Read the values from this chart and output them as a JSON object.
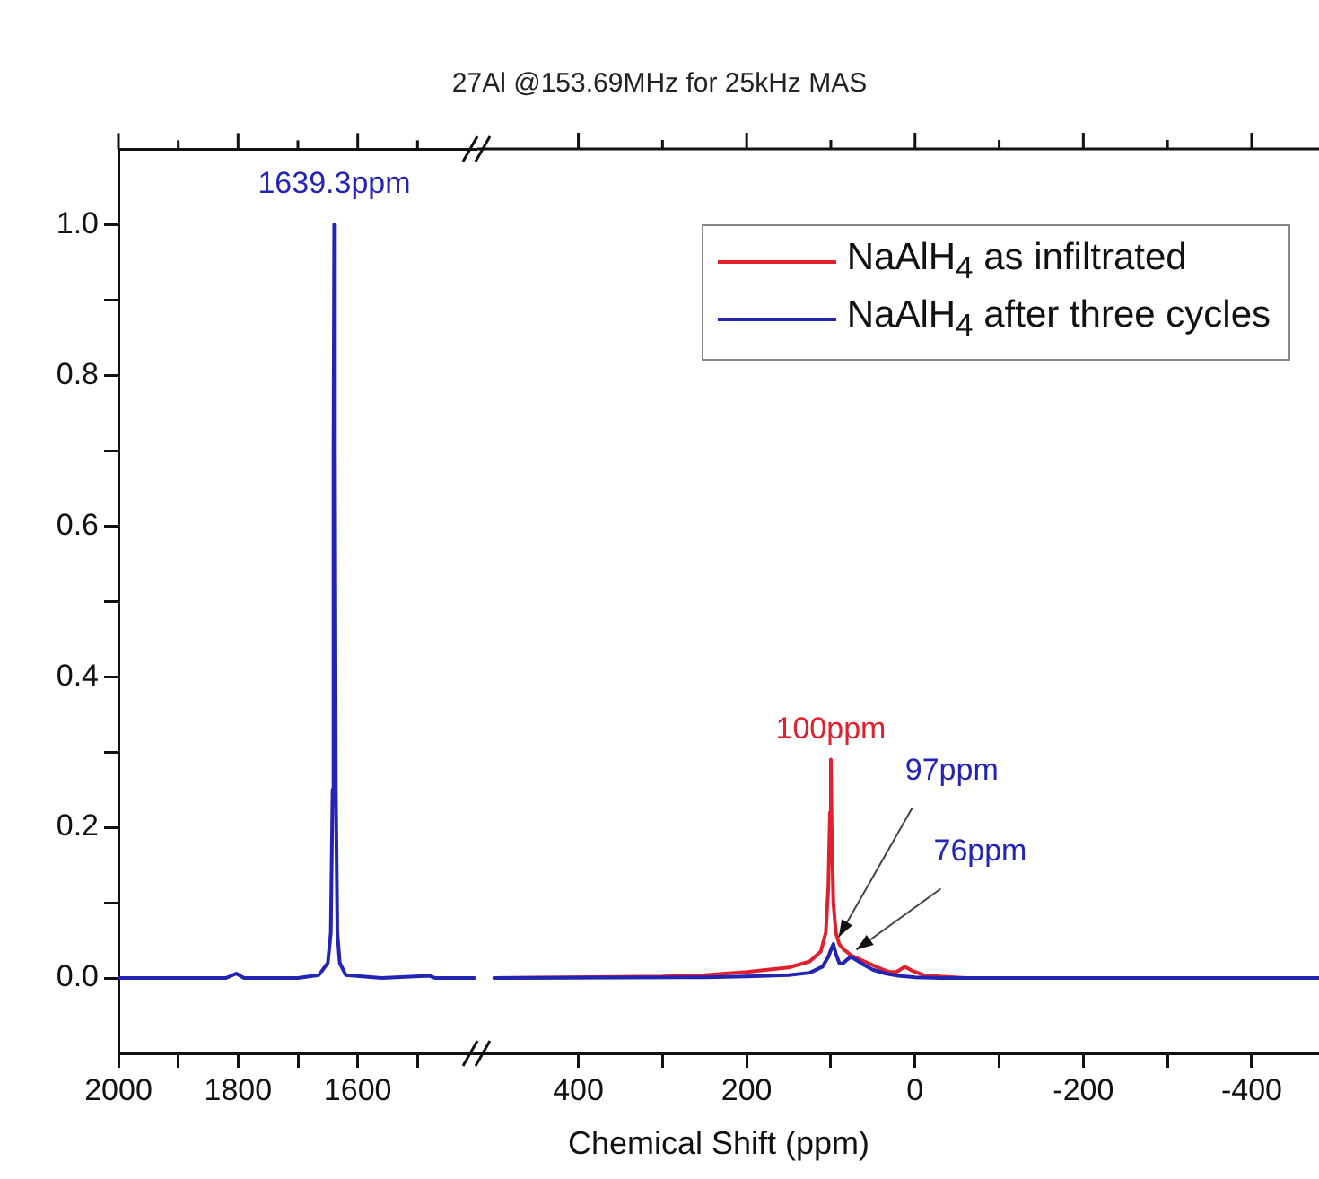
{
  "chart_data": [
    {
      "type": "line",
      "xlim": [
        2000,
        1400
      ],
      "xticks": [
        2000,
        {
          "value": 1900,
          "label": null
        },
        1800,
        {
          "value": 1700,
          "label": null
        },
        1600,
        {
          "value": 1500,
          "label": null
        }
      ],
      "ylim": [
        -0.1,
        1.1
      ],
      "yticks": [
        {
          "value": 0,
          "label": "0.0"
        },
        {
          "value": 0.1,
          "label": null
        },
        0.2,
        {
          "value": 0.3,
          "label": null
        },
        0.4,
        {
          "value": 0.5,
          "label": null
        },
        0.6,
        {
          "value": 0.7,
          "label": null
        },
        0.8,
        {
          "value": 0.9,
          "label": null
        },
        {
          "value": 1,
          "label": "1.0"
        }
      ],
      "grid": false,
      "legend": false,
      "marker": "none",
      "line_style": "solid",
      "series": [
        {
          "color": "#2424b4",
          "x": [
            2000,
            1820,
            1803,
            1790,
            1700,
            1665,
            1650,
            1645,
            1642,
            1640.5,
            1639.3,
            1638,
            1636.5,
            1634,
            1630,
            1620,
            1560,
            1480,
            1470,
            1405
          ],
          "values": [
            0,
            0,
            0.006,
            0,
            0,
            0.004,
            0.02,
            0.06,
            0.25,
            0.7,
            1.0,
            0.7,
            0.25,
            0.06,
            0.02,
            0.004,
            0,
            0.003,
            0,
            0
          ]
        }
      ],
      "annotations": [
        {
          "text": "1639.3ppm",
          "x": 1639.3,
          "y": 1.0
        }
      ]
    },
    {
      "type": "line",
      "title": "27Al @153.69MHz for 25kHz MAS",
      "xlabel": "Chemical Shift (ppm)",
      "xlim": [
        520,
        -480
      ],
      "xticks": [
        400,
        {
          "value": 300,
          "label": null
        },
        200,
        {
          "value": 100,
          "label": null
        },
        0,
        {
          "value": -100,
          "label": null
        },
        -200,
        {
          "value": -300,
          "label": null
        },
        -400
      ],
      "ylim": [
        -0.1,
        1.1
      ],
      "tick_labels": "x",
      "grid": false,
      "legend": "top right",
      "marker": "none",
      "line_style": "solid",
      "series": [
        {
          "name": "NaAlH$_{4}$ as infiltrated",
          "color": "#e0202c",
          "x": [
            500,
            300,
            250,
            200,
            150,
            125,
            112,
            106,
            103,
            101,
            100,
            99,
            97,
            94,
            90,
            85,
            80,
            76,
            70,
            60,
            50,
            40,
            30,
            22,
            12,
            4,
            -10,
            -30,
            -60,
            -480
          ],
          "values": [
            0,
            0.002,
            0.004,
            0.008,
            0.014,
            0.022,
            0.035,
            0.06,
            0.12,
            0.22,
            0.29,
            0.2,
            0.1,
            0.06,
            0.045,
            0.038,
            0.034,
            0.03,
            0.027,
            0.022,
            0.017,
            0.012,
            0.008,
            0.008,
            0.015,
            0.01,
            0.004,
            0.002,
            0,
            0
          ]
        },
        {
          "name": "NaAlH$_{4}$ after three cycles",
          "color": "#2424b4",
          "x": [
            500,
            250,
            200,
            150,
            125,
            110,
            103,
            99,
            97,
            94,
            90,
            86,
            80,
            76,
            70,
            60,
            50,
            35,
            20,
            0,
            -30,
            -480
          ],
          "values": [
            0,
            0.001,
            0.002,
            0.004,
            0.007,
            0.015,
            0.028,
            0.04,
            0.045,
            0.032,
            0.02,
            0.019,
            0.025,
            0.028,
            0.024,
            0.017,
            0.011,
            0.006,
            0.003,
            0.001,
            0,
            0
          ]
        }
      ],
      "annotations": [
        {
          "text": "100ppm",
          "x": 100,
          "y": 0.29
        },
        {
          "text": "97ppm",
          "x": 97,
          "y": 0.045
        },
        {
          "text": "76ppm",
          "x": 76,
          "y": 0.028
        }
      ]
    }
  ]
}
